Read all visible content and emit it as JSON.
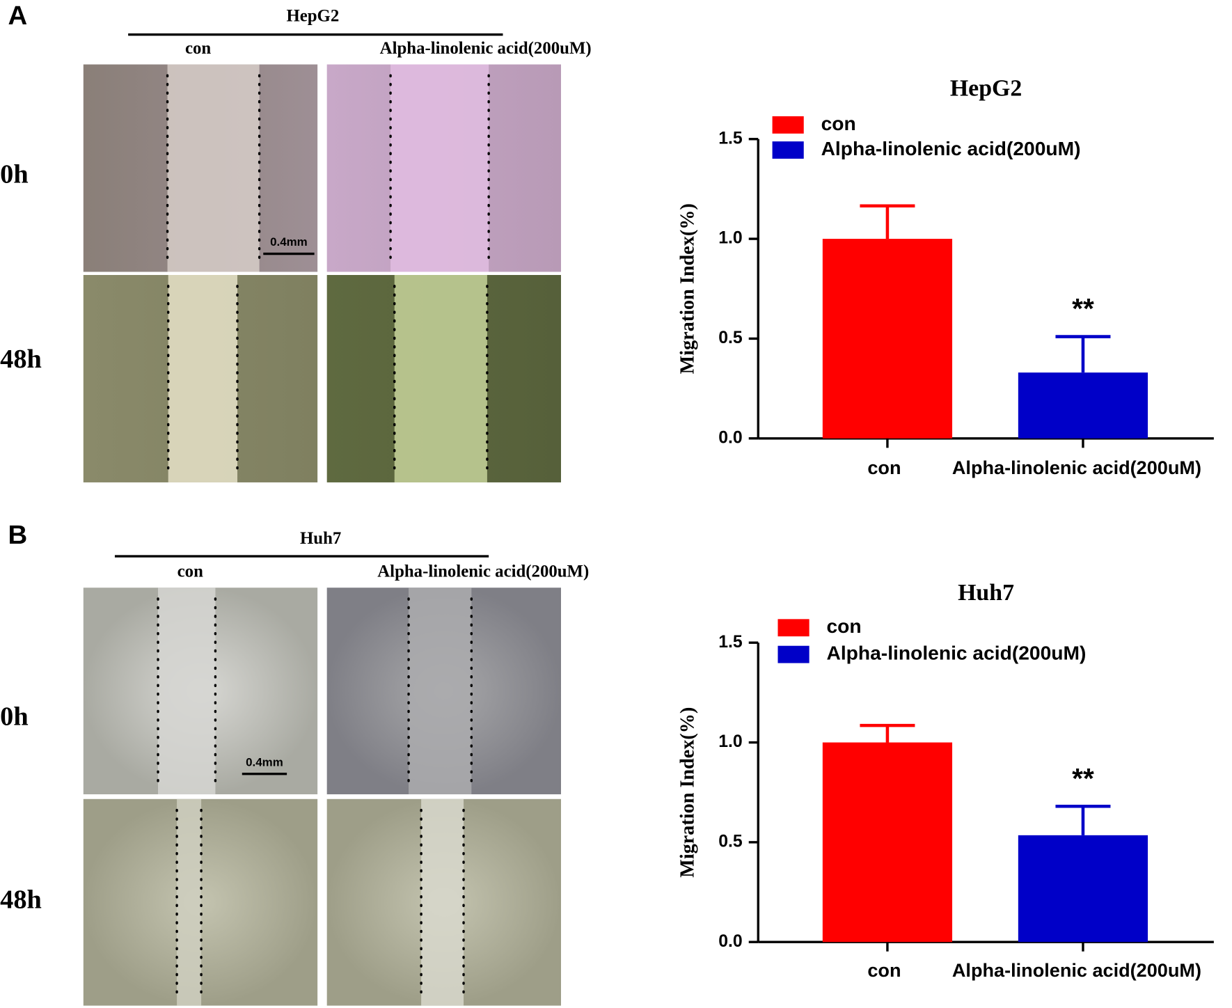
{
  "panels": [
    {
      "label": "A",
      "cell_line": "HepG2",
      "columns": [
        "con",
        "Alpha-linolenic acid(200uM)"
      ],
      "rows": [
        "0h",
        "48h"
      ],
      "scale_bar": "0.4mm"
    },
    {
      "label": "B",
      "cell_line": "Huh7",
      "columns": [
        "con",
        "Alpha-linolenic acid(200uM)"
      ],
      "rows": [
        "0h",
        "48h"
      ],
      "scale_bar": "0.4mm"
    }
  ],
  "chart_data": [
    {
      "type": "bar",
      "title": "HepG2",
      "y_label": "Migration Index(%)",
      "categories": [
        "con",
        "Alpha-linolenic acid(200uM)"
      ],
      "values": [
        1.0,
        0.33
      ],
      "errors": [
        0.165,
        0.18
      ],
      "value_annotations": [
        null,
        "**"
      ],
      "colors": [
        "#ff0000",
        "#0000c8"
      ],
      "ylim": [
        0,
        1.5
      ],
      "yticks": [
        {
          "value": 0,
          "label": "0.0"
        },
        0.5,
        {
          "value": 1,
          "label": "1.0"
        },
        1.5
      ]
    },
    {
      "type": "bar",
      "title": "Huh7",
      "y_label": "Migration Index(%)",
      "categories": [
        "con",
        "Alpha-linolenic acid(200uM)"
      ],
      "values": [
        1.0,
        0.535
      ],
      "errors": [
        0.085,
        0.145
      ],
      "value_annotations": [
        null,
        "**"
      ],
      "colors": [
        "#ff0000",
        "#0000c8"
      ],
      "ylim": [
        0,
        1.5
      ],
      "yticks": [
        {
          "value": 0,
          "label": "0.0"
        },
        0.5,
        {
          "value": 1,
          "label": "1.0"
        },
        1.5
      ]
    }
  ]
}
